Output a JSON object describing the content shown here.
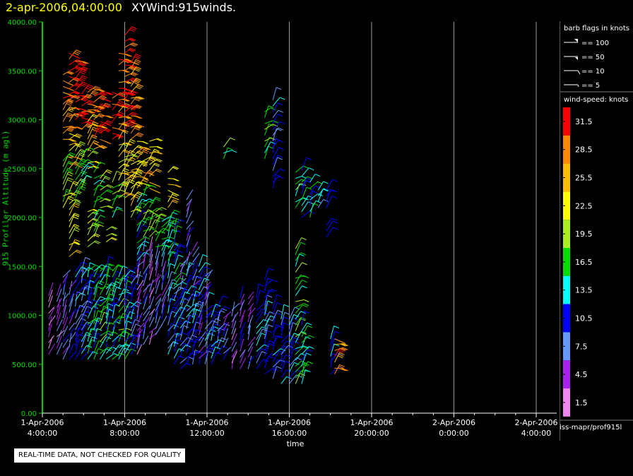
{
  "header": {
    "timestamp": "2-apr-2006,04:00:00",
    "name": "XYWind:915winds."
  },
  "footer": {
    "notice": "REAL-TIME DATA, NOT CHECKED FOR QUALITY",
    "source": "iss-mapr/prof915l"
  },
  "chart_data": {
    "type": "scatter",
    "title": "XYWind:915winds.",
    "xlabel": "time",
    "ylabel": "915 Profiler Altitude (m agl)",
    "ylim": [
      0,
      4000
    ],
    "y_ticks": [
      "0.00",
      "500.00",
      "1000.00",
      "1500.00",
      "2000.00",
      "2500.00",
      "3000.00",
      "3500.00",
      "4000.00"
    ],
    "x_ticks": [
      {
        "line1": "1-Apr-2006",
        "line2": "4:00:00"
      },
      {
        "line1": "1-Apr-2006",
        "line2": "8:00:00"
      },
      {
        "line1": "1-Apr-2006",
        "line2": "12:00:00"
      },
      {
        "line1": "1-Apr-2006",
        "line2": "16:00:00"
      },
      {
        "line1": "1-Apr-2006",
        "line2": "20:00:00"
      },
      {
        "line1": "2-Apr-2006",
        "line2": "0:00:00"
      },
      {
        "line1": "2-Apr-2006",
        "line2": "4:00:00"
      }
    ],
    "grid": true,
    "legend_placement": "right",
    "barb_legend": {
      "title": "barb flags in knots",
      "items": [
        "== 100",
        "== 50",
        "== 10",
        "== 5"
      ]
    },
    "speed_legend": {
      "title": "wind-speed: knots",
      "bins": [
        {
          "label": "31.5",
          "color": "#ff0000"
        },
        {
          "label": "28.5",
          "color": "#ff8800"
        },
        {
          "label": "25.5",
          "color": "#ffbb00"
        },
        {
          "label": "22.5",
          "color": "#ffff00"
        },
        {
          "label": "19.5",
          "color": "#aaee22"
        },
        {
          "label": "16.5",
          "color": "#00dd00"
        },
        {
          "label": "13.5",
          "color": "#00ffff"
        },
        {
          "label": "10.5",
          "color": "#0000ff"
        },
        {
          "label": "7.5",
          "color": "#6699ff"
        },
        {
          "label": "4.5",
          "color": "#aa22ee"
        },
        {
          "label": "1.5",
          "color": "#ee88ee"
        }
      ]
    },
    "profiles": [
      {
        "t": 0.3,
        "bands": [
          [
            600,
            1200,
            1
          ]
        ]
      },
      {
        "t": 0.7,
        "bands": [
          [
            600,
            1200,
            1
          ]
        ]
      },
      {
        "t": 1.0,
        "bands": [
          [
            550,
            1400,
            2
          ],
          [
            2100,
            2600,
            6
          ],
          [
            2800,
            3500,
            9
          ]
        ]
      },
      {
        "t": 1.3,
        "bands": [
          [
            550,
            1300,
            2
          ],
          [
            1600,
            2300,
            7
          ],
          [
            2500,
            3100,
            8
          ],
          [
            3200,
            3700,
            10
          ]
        ]
      },
      {
        "t": 1.6,
        "bands": [
          [
            550,
            1500,
            3
          ],
          [
            2200,
            2700,
            6
          ],
          [
            3000,
            3600,
            10
          ]
        ]
      },
      {
        "t": 1.9,
        "bands": [
          [
            550,
            1500,
            3
          ],
          [
            2300,
            2700,
            5
          ],
          [
            2900,
            3300,
            10
          ]
        ]
      },
      {
        "t": 2.2,
        "bands": [
          [
            550,
            1500,
            4
          ],
          [
            1700,
            2100,
            6
          ],
          [
            2500,
            3000,
            7
          ],
          [
            3100,
            3300,
            10
          ]
        ]
      },
      {
        "t": 2.5,
        "bands": [
          [
            550,
            1500,
            4
          ],
          [
            1800,
            2500,
            5
          ],
          [
            2700,
            3300,
            9
          ]
        ]
      },
      {
        "t": 2.8,
        "bands": [
          [
            550,
            1500,
            5
          ],
          [
            2100,
            2400,
            6
          ],
          [
            2800,
            3300,
            10
          ]
        ]
      },
      {
        "t": 3.1,
        "bands": [
          [
            550,
            1500,
            4
          ],
          [
            1750,
            1900,
            6
          ]
        ]
      },
      {
        "t": 3.4,
        "bands": [
          [
            550,
            1500,
            4
          ],
          [
            2000,
            2400,
            5
          ],
          [
            2800,
            3300,
            10
          ]
        ]
      },
      {
        "t": 3.7,
        "bands": [
          [
            550,
            1400,
            5
          ],
          [
            2200,
            2800,
            7
          ],
          [
            2900,
            3400,
            9
          ],
          [
            3500,
            3700,
            10
          ]
        ]
      },
      {
        "t": 4.0,
        "bands": [
          [
            550,
            1400,
            4
          ],
          [
            2200,
            2700,
            7
          ],
          [
            2900,
            3900,
            10
          ]
        ]
      },
      {
        "t": 4.3,
        "bands": [
          [
            600,
            1400,
            3
          ],
          [
            2000,
            2700,
            7
          ],
          [
            2800,
            3600,
            9
          ]
        ]
      },
      {
        "t": 4.6,
        "bands": [
          [
            600,
            1500,
            1
          ],
          [
            1500,
            2200,
            4
          ],
          [
            2300,
            2800,
            8
          ]
        ]
      },
      {
        "t": 4.9,
        "bands": [
          [
            700,
            1700,
            2
          ],
          [
            1800,
            2300,
            5
          ],
          [
            2400,
            2600,
            8
          ]
        ]
      },
      {
        "t": 5.2,
        "bands": [
          [
            700,
            1700,
            1
          ],
          [
            1800,
            2200,
            5
          ],
          [
            2300,
            2800,
            8
          ]
        ]
      },
      {
        "t": 5.5,
        "bands": [
          [
            800,
            1600,
            2
          ],
          [
            1700,
            2100,
            5
          ]
        ]
      },
      {
        "t": 5.8,
        "bands": [
          [
            900,
            1500,
            2
          ],
          [
            1600,
            2000,
            5
          ]
        ]
      },
      {
        "t": 6.1,
        "bands": [
          [
            600,
            1400,
            3
          ],
          [
            1500,
            2000,
            4
          ],
          [
            2100,
            2500,
            8
          ]
        ]
      },
      {
        "t": 6.4,
        "bands": [
          [
            500,
            1300,
            3
          ],
          [
            1300,
            1900,
            4
          ]
        ]
      },
      {
        "t": 6.7,
        "bands": [
          [
            450,
            1200,
            3
          ],
          [
            1200,
            1500,
            2
          ]
        ]
      },
      {
        "t": 7.0,
        "bands": [
          [
            500,
            1400,
            3
          ],
          [
            1400,
            2200,
            2
          ]
        ]
      },
      {
        "t": 7.3,
        "bands": [
          [
            500,
            1300,
            3
          ],
          [
            1300,
            1700,
            2
          ]
        ]
      },
      {
        "t": 7.6,
        "bands": [
          [
            500,
            1200,
            2
          ],
          [
            1200,
            1500,
            3
          ]
        ]
      },
      {
        "t": 7.9,
        "bands": [
          [
            500,
            1100,
            3
          ],
          [
            1100,
            1400,
            2
          ]
        ]
      },
      {
        "t": 8.2,
        "bands": [
          [
            500,
            1000,
            3
          ]
        ]
      },
      {
        "t": 8.5,
        "bands": [
          [
            600,
            1100,
            3
          ]
        ]
      },
      {
        "t": 8.8,
        "bands": [
          [
            550,
            1000,
            2
          ],
          [
            2600,
            2750,
            5
          ]
        ]
      },
      {
        "t": 9.2,
        "bands": [
          [
            450,
            1100,
            1
          ]
        ]
      },
      {
        "t": 9.6,
        "bands": [
          [
            450,
            1200,
            2
          ]
        ]
      },
      {
        "t": 10.0,
        "bands": [
          [
            450,
            1200,
            2
          ]
        ]
      },
      {
        "t": 10.4,
        "bands": [
          [
            450,
            1200,
            3
          ]
        ]
      },
      {
        "t": 10.8,
        "bands": [
          [
            400,
            1400,
            3
          ],
          [
            2600,
            3100,
            5
          ]
        ]
      },
      {
        "t": 11.2,
        "bands": [
          [
            350,
            1100,
            3
          ],
          [
            2300,
            3200,
            3
          ]
        ]
      },
      {
        "t": 11.6,
        "bands": [
          [
            300,
            1000,
            3
          ]
        ]
      },
      {
        "t": 12.0,
        "bands": [
          [
            300,
            1000,
            3
          ]
        ]
      },
      {
        "t": 12.3,
        "bands": [
          [
            300,
            1700,
            5
          ],
          [
            2100,
            2500,
            5
          ]
        ]
      },
      {
        "t": 12.6,
        "bands": [
          [
            300,
            900,
            4
          ],
          [
            2000,
            2500,
            4
          ]
        ]
      },
      {
        "t": 13.0,
        "bands": [
          [
            2000,
            2400,
            4
          ]
        ]
      },
      {
        "t": 13.4,
        "bands": [
          [
            2100,
            2300,
            3
          ]
        ]
      },
      {
        "t": 13.8,
        "bands": [
          [
            2100,
            2300,
            3
          ],
          [
            1800,
            1950,
            3
          ]
        ]
      },
      {
        "t": 14.0,
        "bands": [
          [
            400,
            800,
            4
          ]
        ]
      },
      {
        "t": 14.2,
        "bands": [
          [
            400,
            800,
            9
          ]
        ]
      }
    ]
  }
}
